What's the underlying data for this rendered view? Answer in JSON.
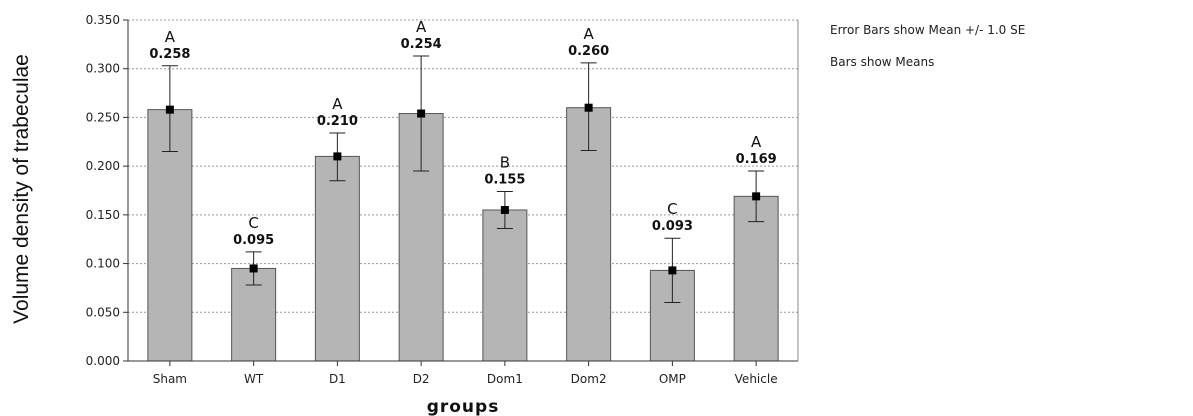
{
  "chart_data": {
    "type": "bar",
    "xlabel": "groups",
    "ylabel": "Volume density of trabeculae",
    "ylim": [
      0,
      0.35
    ],
    "yticks": [
      "0.000",
      "0.050",
      "0.100",
      "0.150",
      "0.200",
      "0.250",
      "0.300",
      "0.350"
    ],
    "grid": "horizontal dotted",
    "categories": [
      "Sham",
      "WT",
      "D1",
      "D2",
      "Dom1",
      "Dom2",
      "OMP",
      "Vehicle"
    ],
    "values": [
      0.258,
      0.095,
      0.21,
      0.254,
      0.155,
      0.26,
      0.093,
      0.169
    ],
    "value_labels": [
      "0.258",
      "0.095",
      "0.210",
      "0.254",
      "0.155",
      "0.260",
      "0.093",
      "0.169"
    ],
    "error_low": [
      0.215,
      0.078,
      0.185,
      0.195,
      0.136,
      0.216,
      0.06,
      0.143
    ],
    "error_high": [
      0.303,
      0.112,
      0.234,
      0.313,
      0.174,
      0.306,
      0.126,
      0.195
    ],
    "significance_letters": [
      "A",
      "C",
      "A",
      "A",
      "B",
      "A",
      "C",
      "A"
    ],
    "notes": [
      "Error Bars show Mean +/- 1.0 SE",
      "Bars show Means"
    ],
    "colors": {
      "bar_fill": "#b5b5b5",
      "bar_stroke": "#555555",
      "grid": "#999999",
      "marker": "#000000"
    }
  }
}
